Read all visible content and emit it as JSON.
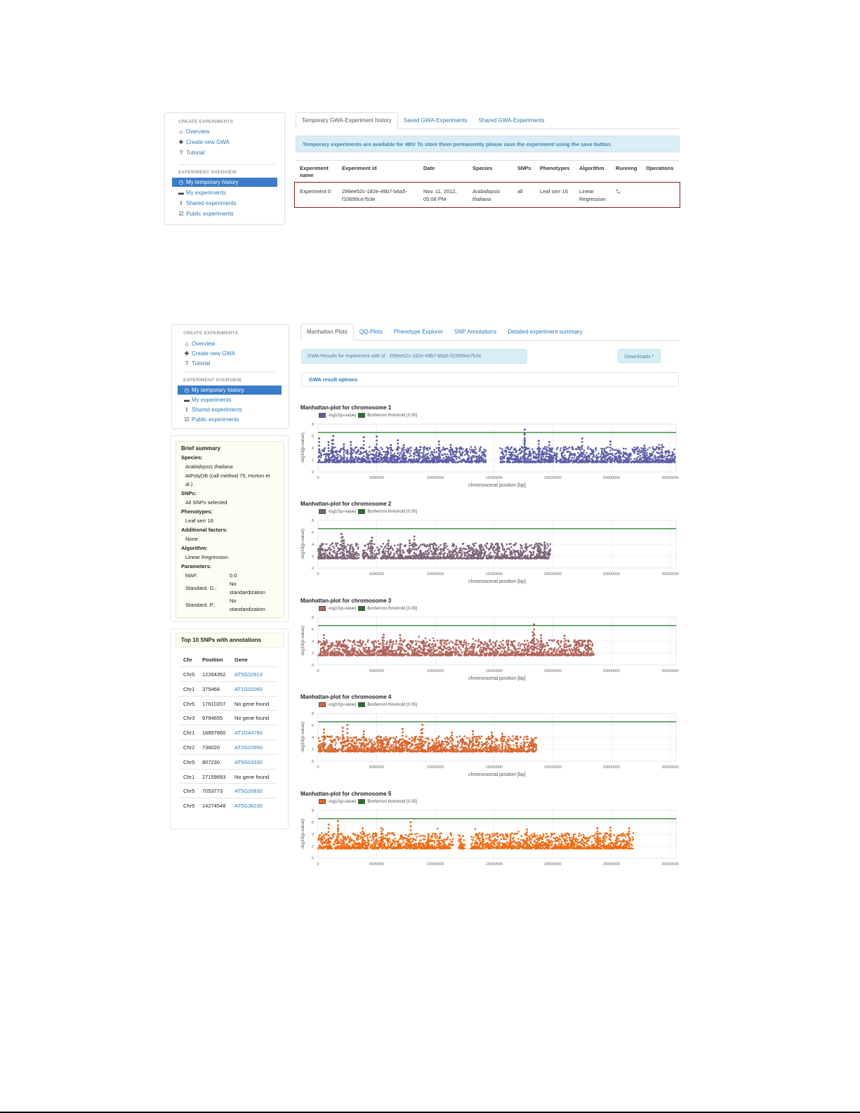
{
  "screen1": {
    "sidebar": {
      "section1_header": "CREATE EXPERIMENTS",
      "items1": [
        {
          "label": "Overview",
          "icon": "home-icon",
          "glyph": "⌂"
        },
        {
          "label": "Create new GWA",
          "icon": "plus-icon",
          "glyph": "✚"
        },
        {
          "label": "Tutorial",
          "icon": "question-circle-icon",
          "glyph": "?"
        }
      ],
      "section2_header": "EXPERIMENT OVERVIEW",
      "items2": [
        {
          "label": "My temporary history",
          "icon": "clock-icon",
          "glyph": "◷",
          "active": true
        },
        {
          "label": "My experiments",
          "icon": "hdd-icon",
          "glyph": "▬"
        },
        {
          "label": "Shared experiments",
          "icon": "share-icon",
          "glyph": "⇪"
        },
        {
          "label": "Public experiments",
          "icon": "check-square-icon",
          "glyph": "☑"
        }
      ]
    },
    "tabs": [
      {
        "label": "Temporary GWA-Experiment history",
        "active": true
      },
      {
        "label": "Saved GWA-Experiments"
      },
      {
        "label": "Shared GWA-Experiments"
      }
    ],
    "alert": "Temporary experiments are available for 48h! To store them permanently please save the experiment using the save button.",
    "table": {
      "headers": [
        "Experiment name",
        "Experiment id",
        "Date",
        "Species",
        "SNPs",
        "Phenotypes",
        "Algorithm",
        "Running",
        "Operations"
      ],
      "rows": [
        {
          "name": "Experiment 0",
          "id_line1": "299ee52c-182e-49b7-b6a5-",
          "id_line2": "f10699ce7b3e",
          "date_line1": "Nov. 11, 2012,",
          "date_line2": "05:08 PM",
          "species_line1": "Arabidopsis",
          "species_line2": "thaliana",
          "snps": "all",
          "phenotypes": "Leaf serr 16",
          "algorithm_line1": "Linear",
          "algorithm_line2": "Regression",
          "running_icon": "spinner-icon",
          "operations": ""
        }
      ]
    },
    "highlight_color": "#8b1a1a"
  },
  "screen2": {
    "sidebar": {
      "section1_header": "CREATE EXPERIMENTS",
      "items1": [
        {
          "label": "Overview",
          "icon": "home-icon",
          "glyph": "⌂"
        },
        {
          "label": "Create new GWA",
          "icon": "plus-icon",
          "glyph": "✚"
        },
        {
          "label": "Tutorial",
          "icon": "question-circle-icon",
          "glyph": "?"
        }
      ],
      "section2_header": "EXPERIMENT OVERVIEW",
      "items2": [
        {
          "label": "My temporary history",
          "icon": "clock-icon",
          "glyph": "◷",
          "active": true
        },
        {
          "label": "My experiments",
          "icon": "hdd-icon",
          "glyph": "▬"
        },
        {
          "label": "Shared experiments",
          "icon": "share-icon",
          "glyph": "⇪"
        },
        {
          "label": "Public experiments",
          "icon": "check-square-icon",
          "glyph": "☑"
        }
      ]
    },
    "tabs": [
      {
        "label": "Manhattan Plots",
        "active": true
      },
      {
        "label": "QQ-Plots"
      },
      {
        "label": "Phenotype Explorer"
      },
      {
        "label": "SNP Annotations"
      },
      {
        "label": "Detailed experiment summary"
      }
    ],
    "results_banner": "GWA-Results for experiment with id : 299ee52c-182e-49b7-b6a5-f10699ce7b3e",
    "downloads_button": "Downloads",
    "options_panel": "GWA result options",
    "summary": {
      "title": "Brief summary",
      "species_label": "Species:",
      "species_value": "Arabidopsis thaliana",
      "dataset_line1": "AtPolyDB (call method 75, Horton et",
      "dataset_line2": "al.)",
      "snps_label": "SNPs:",
      "snps_value": "All SNPs selected",
      "phenotypes_label": "Phenotypes:",
      "phenotypes_value": "Leaf serr 16",
      "factors_label": "Additional factors:",
      "factors_value": "None",
      "algorithm_label": "Algorithm:",
      "algorithm_value": "Linear Regression",
      "parameters_label": "Parameters:",
      "maf_label": "MAF:",
      "maf_value": "0.0",
      "std_g_label": "Standard. G.:",
      "std_g_value_line1": "No",
      "std_g_value_line2": "standardization",
      "std_p_label": "Standard. P.:",
      "std_p_value_line1": "No",
      "std_p_value_line2": "standardization"
    },
    "top_snps": {
      "title": "Top 10 SNPs with annotations",
      "headers": [
        "Chr",
        "Position",
        "Gene"
      ],
      "rows": [
        {
          "chr": "Chr5",
          "position": "12264352",
          "gene": "AT5G32613",
          "link": true
        },
        {
          "chr": "Chr1",
          "position": "375468",
          "gene": "AT1G02060",
          "link": true
        },
        {
          "chr": "Chr5",
          "position": "17610207",
          "gene": "No gene found",
          "link": false
        },
        {
          "chr": "Chr3",
          "position": "9794655",
          "gene": "No gene found",
          "link": false
        },
        {
          "chr": "Chr1",
          "position": "16897860",
          "gene": "AT1G44760",
          "link": true
        },
        {
          "chr": "Chr2",
          "position": "736020",
          "gene": "AT2G02650",
          "link": true
        },
        {
          "chr": "Chr5",
          "position": "807230",
          "gene": "AT5G03330",
          "link": true
        },
        {
          "chr": "Chr1",
          "position": "27159893",
          "gene": "No gene found",
          "link": false
        },
        {
          "chr": "Chr5",
          "position": "7053773",
          "gene": "AT5G20830",
          "link": true
        },
        {
          "chr": "Chr5",
          "position": "14274548",
          "gene": "AT5G36230",
          "link": true
        }
      ]
    }
  },
  "chart_data": [
    {
      "type": "scatter",
      "title": "Manhattan-plot for chromosome 1",
      "legend": [
        "-log10(p-value)",
        "Bonferroni threshold [0.05]"
      ],
      "xlabel": "chromosomal position [bp]",
      "ylabel": "-log10(p-value)",
      "xlim": [
        0,
        30500000
      ],
      "ylim": [
        0,
        8
      ],
      "xticks": [
        "0",
        "5000000",
        "10000000",
        "15000000",
        "20000000",
        "25000000",
        "30000000"
      ],
      "yticks": [
        "0",
        "2",
        "4",
        "6",
        "8"
      ],
      "threshold": 6.6,
      "color": "#5b5ea6",
      "threshold_color": "#1e7b1e",
      "segments": [
        [
          0,
          14300000
        ],
        [
          15500000,
          30400000
        ]
      ],
      "peaks": [
        [
          100000,
          5.6
        ],
        [
          1300000,
          6.0
        ],
        [
          1200000,
          5.3
        ],
        [
          900000,
          5.0
        ],
        [
          2200000,
          4.6
        ],
        [
          2800000,
          5.0
        ],
        [
          3900000,
          5.8
        ],
        [
          5000000,
          5.9
        ],
        [
          6200000,
          4.5
        ],
        [
          6800000,
          5.3
        ],
        [
          7300000,
          4.5
        ],
        [
          10300000,
          5.1
        ],
        [
          11300000,
          4.5
        ],
        [
          17600000,
          7.1
        ],
        [
          17600000,
          6.4
        ],
        [
          17600000,
          5.2
        ],
        [
          18800000,
          5.2
        ],
        [
          19700000,
          5.0
        ],
        [
          22500000,
          5.6
        ],
        [
          24900000,
          5.1
        ],
        [
          27800000,
          4.4
        ],
        [
          29300000,
          4.5
        ]
      ]
    },
    {
      "type": "scatter",
      "title": "Manhattan-plot for chromosome 2",
      "legend": [
        "-log10(p-value)",
        "Bonferroni threshold [0.05]"
      ],
      "xlabel": "chromosomal position [bp]",
      "ylabel": "-log10(p-value)",
      "xlim": [
        0,
        30500000
      ],
      "ylim": [
        0,
        8
      ],
      "xticks": [
        "0",
        "5000000",
        "10000000",
        "15000000",
        "20000000",
        "25000000",
        "30000000"
      ],
      "yticks": [
        "0",
        "2",
        "4",
        "6",
        "8"
      ],
      "threshold": 6.6,
      "color": "#7d6578",
      "threshold_color": "#1e7b1e",
      "segments": [
        [
          0,
          3500000
        ],
        [
          3800000,
          19800000
        ]
      ],
      "peaks": [
        [
          200000,
          3.7
        ],
        [
          2000000,
          5.7
        ],
        [
          2100000,
          5.2
        ],
        [
          2200000,
          4.6
        ],
        [
          4600000,
          5.1
        ],
        [
          4500000,
          4.5
        ],
        [
          6000000,
          4.6
        ],
        [
          7000000,
          4.0
        ],
        [
          7800000,
          4.6
        ],
        [
          8200000,
          5.3
        ],
        [
          15300000,
          4.1
        ],
        [
          18800000,
          4.1
        ],
        [
          19300000,
          4.3
        ]
      ]
    },
    {
      "type": "scatter",
      "title": "Manhattan-plot for chromosome 3",
      "legend": [
        "-log10(p-value)",
        "Bonferroni threshold [0.05]"
      ],
      "xlabel": "chromosomal position [bp]",
      "ylabel": "-log10(p-value)",
      "xlim": [
        0,
        30500000
      ],
      "ylim": [
        0,
        8
      ],
      "xticks": [
        "0",
        "5000000",
        "10000000",
        "15000000",
        "20000000",
        "25000000",
        "30000000"
      ],
      "yticks": [
        "0",
        "2",
        "4",
        "6",
        "8"
      ],
      "threshold": 6.6,
      "color": "#b0645a",
      "threshold_color": "#1e7b1e",
      "segments": [
        [
          0,
          23500000
        ]
      ],
      "peaks": [
        [
          500000,
          5.0
        ],
        [
          5600000,
          5.1
        ],
        [
          5500000,
          4.6
        ],
        [
          7000000,
          5.0
        ],
        [
          9000000,
          4.0
        ],
        [
          18400000,
          6.8
        ],
        [
          18300000,
          5.5
        ],
        [
          18400000,
          5.0
        ],
        [
          19000000,
          5.0
        ],
        [
          21000000,
          4.9
        ],
        [
          23000000,
          4.1
        ]
      ]
    },
    {
      "type": "scatter",
      "title": "Manhattan-plot for chromosome 4",
      "legend": [
        "-log10(p-value)",
        "Bonferroni threshold [0.05]"
      ],
      "xlabel": "chromosomal position [bp]",
      "ylabel": "-log10(p-value)",
      "xlim": [
        0,
        30500000
      ],
      "ylim": [
        0,
        8
      ],
      "xticks": [
        "0",
        "5000000",
        "10000000",
        "15000000",
        "20000000",
        "25000000",
        "30000000"
      ],
      "yticks": [
        "0",
        "2",
        "4",
        "6",
        "8"
      ],
      "threshold": 6.6,
      "color": "#d9662e",
      "threshold_color": "#1e7b1e",
      "segments": [
        [
          0,
          18600000
        ]
      ],
      "peaks": [
        [
          500000,
          5.3
        ],
        [
          2100000,
          5.6
        ],
        [
          2500000,
          6.1
        ],
        [
          3900000,
          5.0
        ],
        [
          7200000,
          5.4
        ],
        [
          8900000,
          6.1
        ],
        [
          8800000,
          5.2
        ],
        [
          11400000,
          4.8
        ],
        [
          13200000,
          5.0
        ],
        [
          14800000,
          4.8
        ],
        [
          15700000,
          4.6
        ]
      ]
    },
    {
      "type": "scatter",
      "title": "Manhattan-plot for chromosome 5",
      "legend": [
        "-log10(p-value)",
        "Bonferroni threshold [0.05]"
      ],
      "xlabel": "chromosomal position [bp]",
      "ylabel": "-log10(p-value)",
      "xlim": [
        0,
        30500000
      ],
      "ylim": [
        0,
        8
      ],
      "xticks": [
        "0",
        "5000000",
        "10000000",
        "15000000",
        "20000000",
        "25000000",
        "30000000"
      ],
      "yticks": [
        "0",
        "2",
        "4",
        "6",
        "8"
      ],
      "threshold": 6.6,
      "color": "#f26b11",
      "threshold_color": "#1e7b1e",
      "segments": [
        [
          0,
          11500000
        ],
        [
          11900000,
          12500000
        ],
        [
          13000000,
          26900000
        ]
      ],
      "peaks": [
        [
          900000,
          5.6
        ],
        [
          1700000,
          6.2
        ],
        [
          1700000,
          5.0
        ],
        [
          3800000,
          5.0
        ],
        [
          5400000,
          5.0
        ],
        [
          7900000,
          6.0
        ],
        [
          9400000,
          4.0
        ],
        [
          14000000,
          4.1
        ],
        [
          16400000,
          4.0
        ],
        [
          17800000,
          4.8
        ],
        [
          23800000,
          5.0
        ],
        [
          24900000,
          5.1
        ],
        [
          26500000,
          5.0
        ]
      ]
    }
  ]
}
